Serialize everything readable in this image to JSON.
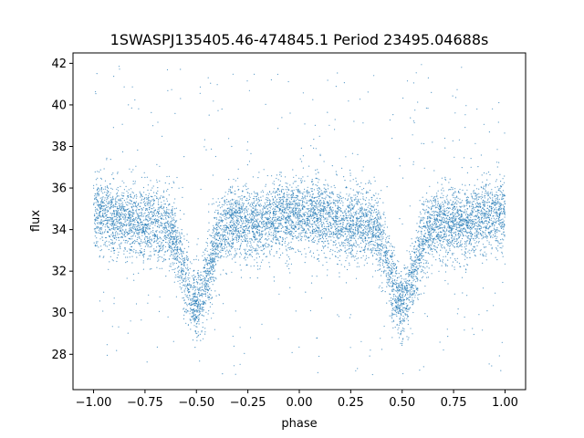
{
  "chart_data": {
    "type": "scatter",
    "title": "1SWASPJ135405.46-474845.1 Period 23495.04688s",
    "xlabel": "phase",
    "ylabel": "flux",
    "xlim": [
      -1.1,
      1.1
    ],
    "ylim": [
      26.3,
      42.5
    ],
    "xticks": [
      -1.0,
      -0.75,
      -0.5,
      -0.25,
      0.0,
      0.25,
      0.5,
      0.75,
      1.0
    ],
    "xtick_labels": [
      "−1.00",
      "−0.75",
      "−0.50",
      "−0.25",
      "0.00",
      "0.25",
      "0.50",
      "0.75",
      "1.00"
    ],
    "yticks": [
      28,
      30,
      32,
      34,
      36,
      38,
      40,
      42
    ],
    "ytick_labels": [
      "28",
      "30",
      "32",
      "34",
      "36",
      "38",
      "40",
      "42"
    ],
    "grid": false,
    "marker_color": "#1f77b4",
    "series": [
      {
        "baseline_flux": 34.8,
        "x_range": [
          -1.0,
          1.0
        ],
        "minima": [
          {
            "x": -0.5,
            "y": 30.0
          },
          {
            "x": 0.5,
            "y": 30.0
          }
        ],
        "outlier_range": [
          27.0,
          42.0
        ],
        "profile": [
          {
            "x": -1.0,
            "y": 34.8
          },
          {
            "x": -0.75,
            "y": 34.3
          },
          {
            "x": -0.5,
            "y": 30.0
          },
          {
            "x": -0.25,
            "y": 34.3
          },
          {
            "x": 0.0,
            "y": 34.8
          },
          {
            "x": 0.25,
            "y": 34.3
          },
          {
            "x": 0.5,
            "y": 30.0
          },
          {
            "x": 0.75,
            "y": 34.3
          },
          {
            "x": 1.0,
            "y": 34.8
          }
        ]
      }
    ]
  }
}
